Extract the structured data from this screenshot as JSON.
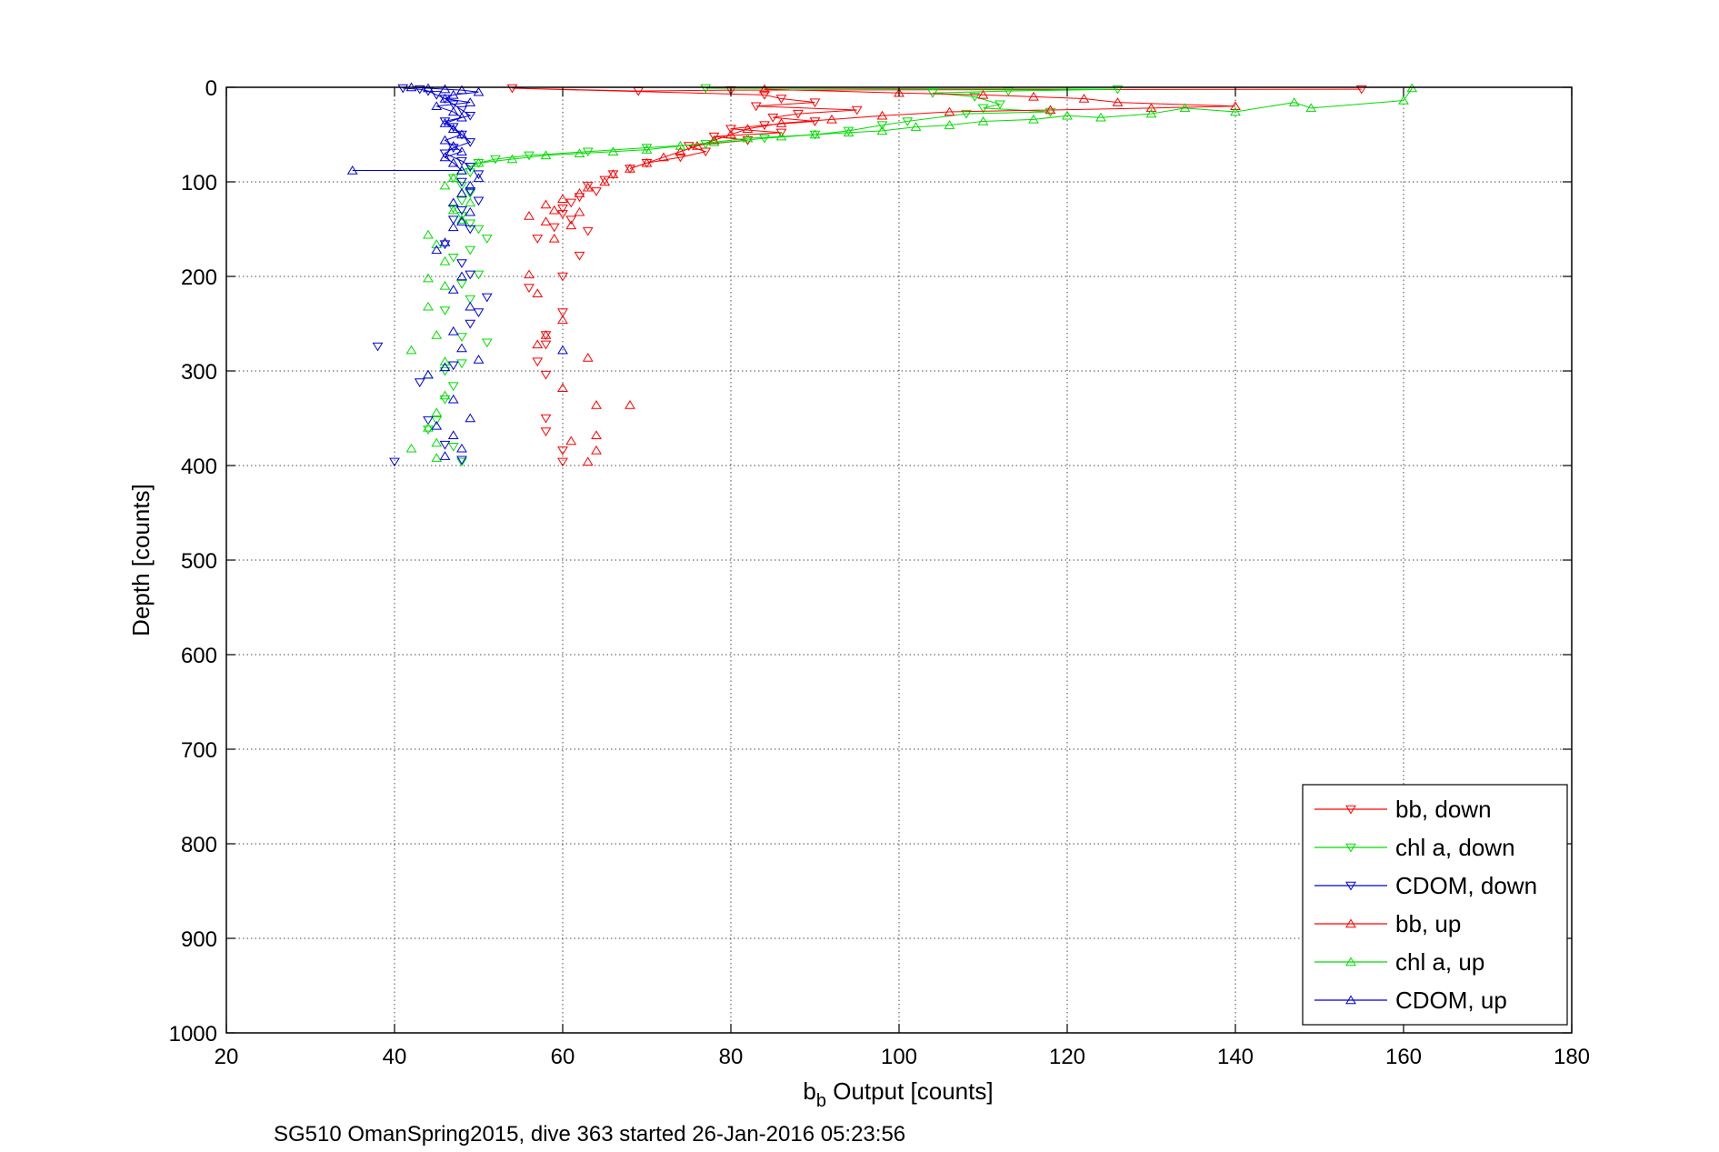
{
  "chart_data": {
    "type": "scatter",
    "title": "",
    "xlabel_main": "b",
    "xlabel_sub": "b",
    "xlabel_rest": " Output [counts]",
    "ylabel": "Depth [counts]",
    "caption": "SG510 OmanSpring2015, dive 363 started 26-Jan-2016 05:23:56",
    "xlim": [
      20,
      180
    ],
    "ylim": [
      0,
      1000
    ],
    "y_reversed": true,
    "grid": true,
    "legend_position": "bottom-right",
    "x_ticks": [
      "20",
      "40",
      "60",
      "80",
      "100",
      "120",
      "140",
      "160",
      "180"
    ],
    "y_ticks": [
      "0",
      "100",
      "200",
      "300",
      "400",
      "500",
      "600",
      "700",
      "800",
      "900",
      "1000"
    ],
    "series": [
      {
        "name": "bb, down",
        "color": "#ff0000",
        "marker": "triangle-down",
        "points": [
          [
            155,
            2
          ],
          [
            80,
            3
          ],
          [
            69,
            4
          ],
          [
            54,
            1
          ],
          [
            84,
            8
          ],
          [
            86,
            12
          ],
          [
            90,
            16
          ],
          [
            83,
            20
          ],
          [
            95,
            24
          ],
          [
            88,
            28
          ],
          [
            85,
            32
          ],
          [
            90,
            36
          ],
          [
            84,
            40
          ],
          [
            80,
            44
          ],
          [
            86,
            48
          ],
          [
            78,
            52
          ],
          [
            82,
            56
          ],
          [
            75,
            62
          ],
          [
            77,
            68
          ],
          [
            74,
            74
          ],
          [
            70,
            80
          ],
          [
            68,
            86
          ],
          [
            66,
            92
          ],
          [
            65,
            98
          ],
          [
            63,
            104
          ],
          [
            64,
            110
          ],
          [
            62,
            116
          ],
          [
            61,
            122
          ],
          [
            60,
            128
          ],
          [
            60,
            134
          ],
          [
            61,
            140
          ],
          [
            59,
            148
          ],
          [
            63,
            152
          ],
          [
            57,
            160
          ],
          [
            62,
            178
          ],
          [
            60,
            200
          ],
          [
            56,
            212
          ],
          [
            60,
            238
          ],
          [
            58,
            262
          ],
          [
            58,
            272
          ],
          [
            57,
            290
          ],
          [
            58,
            304
          ],
          [
            58,
            350
          ],
          [
            58,
            364
          ],
          [
            60,
            384
          ],
          [
            60,
            396
          ]
        ]
      },
      {
        "name": "chl a, down",
        "color": "#00dd00",
        "marker": "triangle-down",
        "points": [
          [
            77,
            1
          ],
          [
            126,
            2
          ],
          [
            113,
            4
          ],
          [
            104,
            6
          ],
          [
            109,
            10
          ],
          [
            112,
            18
          ],
          [
            110,
            22
          ],
          [
            118,
            26
          ],
          [
            108,
            28
          ],
          [
            101,
            36
          ],
          [
            98,
            40
          ],
          [
            94,
            46
          ],
          [
            90,
            50
          ],
          [
            84,
            54
          ],
          [
            77,
            60
          ],
          [
            70,
            64
          ],
          [
            63,
            68
          ],
          [
            56,
            72
          ],
          [
            52,
            76
          ],
          [
            50,
            80
          ],
          [
            49,
            84
          ],
          [
            49,
            90
          ],
          [
            47,
            96
          ],
          [
            48,
            104
          ],
          [
            49,
            112
          ],
          [
            48,
            120
          ],
          [
            47,
            128
          ],
          [
            48,
            136
          ],
          [
            49,
            144
          ],
          [
            50,
            150
          ],
          [
            51,
            160
          ],
          [
            49,
            172
          ],
          [
            47,
            180
          ],
          [
            50,
            198
          ],
          [
            48,
            208
          ],
          [
            49,
            224
          ],
          [
            46,
            236
          ],
          [
            48,
            264
          ],
          [
            51,
            270
          ],
          [
            48,
            292
          ],
          [
            46,
            300
          ],
          [
            47,
            316
          ],
          [
            46,
            330
          ],
          [
            45,
            352
          ],
          [
            44,
            362
          ],
          [
            47,
            380
          ],
          [
            48,
            396
          ]
        ]
      },
      {
        "name": "CDOM, down",
        "color": "#0000dd",
        "marker": "triangle-down",
        "points": [
          [
            41,
            1
          ],
          [
            43,
            2
          ],
          [
            44,
            4
          ],
          [
            45,
            8
          ],
          [
            46,
            12
          ],
          [
            47,
            18
          ],
          [
            48,
            24
          ],
          [
            49,
            30
          ],
          [
            46,
            36
          ],
          [
            47,
            42
          ],
          [
            48,
            50
          ],
          [
            49,
            58
          ],
          [
            47,
            64
          ],
          [
            46,
            70
          ],
          [
            48,
            78
          ],
          [
            49,
            84
          ],
          [
            50,
            92
          ],
          [
            48,
            100
          ],
          [
            49,
            110
          ],
          [
            50,
            120
          ],
          [
            48,
            130
          ],
          [
            47,
            140
          ],
          [
            49,
            150
          ],
          [
            46,
            166
          ],
          [
            48,
            186
          ],
          [
            49,
            198
          ],
          [
            51,
            222
          ],
          [
            50,
            238
          ],
          [
            49,
            250
          ],
          [
            47,
            294
          ],
          [
            43,
            312
          ],
          [
            38,
            274
          ],
          [
            44,
            352
          ],
          [
            46,
            378
          ],
          [
            40,
            396
          ],
          [
            48,
            394
          ]
        ]
      },
      {
        "name": "bb, up",
        "color": "#ff0000",
        "marker": "triangle-up",
        "points": [
          [
            84,
            2
          ],
          [
            100,
            6
          ],
          [
            110,
            8
          ],
          [
            116,
            10
          ],
          [
            122,
            12
          ],
          [
            126,
            16
          ],
          [
            140,
            20
          ],
          [
            130,
            22
          ],
          [
            118,
            24
          ],
          [
            106,
            26
          ],
          [
            98,
            30
          ],
          [
            92,
            34
          ],
          [
            86,
            38
          ],
          [
            82,
            44
          ],
          [
            80,
            50
          ],
          [
            78,
            56
          ],
          [
            76,
            62
          ],
          [
            74,
            68
          ],
          [
            72,
            74
          ],
          [
            70,
            80
          ],
          [
            68,
            86
          ],
          [
            66,
            92
          ],
          [
            65,
            100
          ],
          [
            63,
            106
          ],
          [
            62,
            112
          ],
          [
            60,
            118
          ],
          [
            58,
            124
          ],
          [
            59,
            130
          ],
          [
            56,
            136
          ],
          [
            58,
            142
          ],
          [
            61,
            146
          ],
          [
            62,
            132
          ],
          [
            59,
            160
          ],
          [
            56,
            198
          ],
          [
            57,
            218
          ],
          [
            60,
            246
          ],
          [
            58,
            262
          ],
          [
            57,
            272
          ],
          [
            63,
            286
          ],
          [
            60,
            318
          ],
          [
            64,
            336
          ],
          [
            68,
            336
          ],
          [
            64,
            368
          ],
          [
            61,
            374
          ],
          [
            63,
            396
          ],
          [
            64,
            384
          ]
        ]
      },
      {
        "name": "chl a, up",
        "color": "#00dd00",
        "marker": "triangle-up",
        "points": [
          [
            161,
            1
          ],
          [
            160,
            14
          ],
          [
            149,
            22
          ],
          [
            147,
            16
          ],
          [
            140,
            26
          ],
          [
            134,
            22
          ],
          [
            130,
            28
          ],
          [
            124,
            32
          ],
          [
            120,
            30
          ],
          [
            116,
            34
          ],
          [
            110,
            36
          ],
          [
            106,
            40
          ],
          [
            102,
            42
          ],
          [
            98,
            46
          ],
          [
            94,
            48
          ],
          [
            90,
            50
          ],
          [
            86,
            52
          ],
          [
            82,
            54
          ],
          [
            78,
            58
          ],
          [
            74,
            62
          ],
          [
            70,
            66
          ],
          [
            66,
            68
          ],
          [
            62,
            70
          ],
          [
            58,
            72
          ],
          [
            54,
            76
          ],
          [
            50,
            80
          ],
          [
            48,
            88
          ],
          [
            47,
            96
          ],
          [
            46,
            104
          ],
          [
            48,
            112
          ],
          [
            49,
            122
          ],
          [
            47,
            130
          ],
          [
            48,
            140
          ],
          [
            44,
            156
          ],
          [
            45,
            166
          ],
          [
            46,
            184
          ],
          [
            44,
            202
          ],
          [
            46,
            210
          ],
          [
            44,
            232
          ],
          [
            45,
            262
          ],
          [
            42,
            278
          ],
          [
            46,
            290
          ],
          [
            44,
            304
          ],
          [
            46,
            326
          ],
          [
            45,
            344
          ],
          [
            44,
            360
          ],
          [
            45,
            376
          ],
          [
            42,
            382
          ],
          [
            45,
            392
          ]
        ]
      },
      {
        "name": "CDOM, up",
        "color": "#0000dd",
        "marker": "triangle-up",
        "points": [
          [
            42,
            0
          ],
          [
            44,
            1
          ],
          [
            46,
            2
          ],
          [
            48,
            3
          ],
          [
            50,
            5
          ],
          [
            47,
            8
          ],
          [
            46,
            12
          ],
          [
            49,
            16
          ],
          [
            45,
            20
          ],
          [
            47,
            26
          ],
          [
            48,
            32
          ],
          [
            46,
            38
          ],
          [
            47,
            44
          ],
          [
            48,
            50
          ],
          [
            46,
            56
          ],
          [
            47,
            62
          ],
          [
            48,
            68
          ],
          [
            46,
            74
          ],
          [
            47,
            80
          ],
          [
            48,
            88
          ],
          [
            50,
            96
          ],
          [
            49,
            104
          ],
          [
            48,
            112
          ],
          [
            47,
            122
          ],
          [
            49,
            132
          ],
          [
            48,
            142
          ],
          [
            47,
            148
          ],
          [
            35,
            88
          ],
          [
            46,
            164
          ],
          [
            45,
            172
          ],
          [
            48,
            200
          ],
          [
            47,
            214
          ],
          [
            49,
            232
          ],
          [
            47,
            258
          ],
          [
            48,
            276
          ],
          [
            50,
            288
          ],
          [
            46,
            296
          ],
          [
            44,
            304
          ],
          [
            47,
            330
          ],
          [
            49,
            350
          ],
          [
            45,
            358
          ],
          [
            47,
            368
          ],
          [
            48,
            382
          ],
          [
            46,
            390
          ],
          [
            60,
            278
          ]
        ]
      }
    ]
  }
}
